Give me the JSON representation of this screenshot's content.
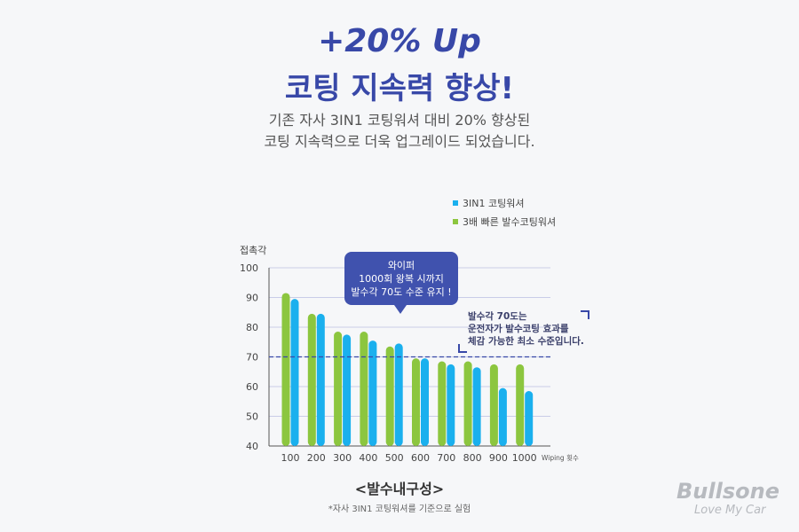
{
  "headline": {
    "line1": "+20% Up",
    "line2": "코팅 지속력 향상!"
  },
  "subtitle": {
    "line1": "기존 자사 3IN1 코팅워셔 대비 20% 향상된",
    "line2": "코팅 지속력으로 더욱 업그레이드 되었습니다."
  },
  "tooltip": {
    "line1": "와이퍼",
    "line2": "1000회 왕복 시까지",
    "line3": "발수각 70도 수준 유지 !"
  },
  "note": {
    "line1": "발수각 70도는",
    "line2": "운전자가 발수코팅 효과를",
    "line3": "체감 가능한 최소 수준입니다."
  },
  "chart_caption": "<발수내구성>",
  "footnote": "*자사 3IN1 코팅워셔를 기준으로 실험",
  "brand": {
    "name": "Bullsone",
    "tagline": "Love My Car"
  },
  "chart_data": {
    "type": "bar",
    "title": "<발수내구성>",
    "ylabel": "접촉각",
    "xlabel": "Wiping 횟수",
    "categories": [
      "100",
      "200",
      "300",
      "400",
      "500",
      "600",
      "700",
      "800",
      "900",
      "1000"
    ],
    "ylim": [
      40,
      100
    ],
    "yticks": [
      "40",
      "50",
      "60",
      "70",
      "80",
      "90",
      "100"
    ],
    "reference_line": 70,
    "grid": true,
    "legend_position": "top-right",
    "series": [
      {
        "name": "3배 빠른 발수코팅워셔",
        "color": "#8cc63f",
        "values": [
          91.5,
          84.5,
          78.5,
          78.5,
          73.5,
          69.5,
          68.5,
          68.5,
          67.5,
          67.5
        ]
      },
      {
        "name": "3IN1 코팅워셔",
        "color": "#1ab0ee",
        "values": [
          89.5,
          84.5,
          77.5,
          75.5,
          74.5,
          69.5,
          67.5,
          66.5,
          59.5,
          58.5
        ]
      }
    ]
  }
}
